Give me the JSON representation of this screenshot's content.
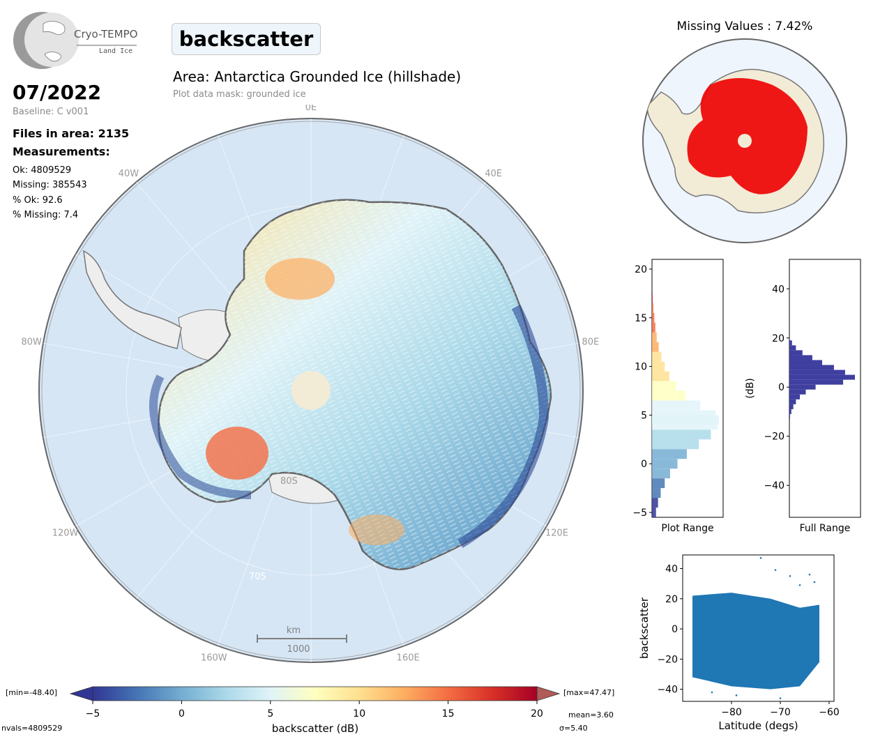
{
  "branding": {
    "product": "Cryo-TEMPO",
    "subproduct": "Land Ice"
  },
  "header": {
    "variable": "backscatter",
    "date": "07/2022",
    "baseline": "Baseline: C v001",
    "area": "Area: Antarctica Grounded Ice (hillshade)",
    "mask": "Plot data mask: grounded ice"
  },
  "stats": {
    "files_label": "Files in area: 2135",
    "measurements_label": "Measurements:",
    "ok": "Ok: 4809529",
    "missing": "Missing: 385543",
    "pct_ok": "% Ok: 92.6",
    "pct_missing": "% Missing: 7.4"
  },
  "main_map": {
    "lon_labels": [
      "0E",
      "40E",
      "80E",
      "120E",
      "160E",
      "160W",
      "120W",
      "80W",
      "40W"
    ],
    "lat_labels": [
      "80S",
      "70S"
    ],
    "scalebar_unit": "km",
    "scalebar_value": "1000"
  },
  "missing_map": {
    "title": "Missing Values : 7.42%"
  },
  "colorbar": {
    "min_label": "[min=-48.40]",
    "max_label": "[max=47.47]",
    "label": "backscatter (dB)",
    "ticks": [
      "-5",
      "0",
      "5",
      "10",
      "15",
      "20"
    ],
    "mean_label": "mean=3.60",
    "sigma_label": "σ=5.40",
    "nvals_label": "nvals=4809529",
    "colors": [
      "#313695",
      "#4575b4",
      "#74add1",
      "#abd9e9",
      "#e0f3f8",
      "#ffffbf",
      "#fee090",
      "#fdae61",
      "#f46d43",
      "#d73027",
      "#a50026"
    ]
  },
  "chart_data": [
    {
      "type": "bar",
      "orientation": "horizontal",
      "xlabel": "Plot Range",
      "ylabel": "",
      "ylim": [
        -5.5,
        21
      ],
      "yticks": [
        "20",
        "15",
        "10",
        "5",
        "0",
        "-5"
      ],
      "bins_center": [
        -5,
        -4,
        -3,
        -2,
        -1,
        0,
        1,
        2,
        3,
        4,
        4.5,
        5,
        6,
        7,
        8,
        9,
        10,
        11,
        12,
        13,
        14,
        15,
        16,
        17
      ],
      "relative_counts": [
        0.06,
        0.09,
        0.13,
        0.19,
        0.27,
        0.38,
        0.52,
        0.7,
        0.88,
        0.98,
        1.0,
        0.95,
        0.72,
        0.5,
        0.36,
        0.26,
        0.19,
        0.14,
        0.1,
        0.07,
        0.05,
        0.035,
        0.02,
        0.01
      ]
    },
    {
      "type": "bar",
      "orientation": "horizontal",
      "xlabel": "Full Range",
      "ylabel": "(dB)",
      "ylim": [
        -53,
        52
      ],
      "yticks": [
        "40",
        "20",
        "0",
        "-20",
        "-40"
      ],
      "color": "#3f3fa0",
      "bins_center": [
        18,
        16,
        14,
        12,
        10,
        8,
        6,
        4,
        2,
        0,
        -2,
        -4,
        -6,
        -8,
        -10,
        -12
      ],
      "relative_counts": [
        0.04,
        0.1,
        0.2,
        0.35,
        0.5,
        0.68,
        0.85,
        1.0,
        0.82,
        0.4,
        0.25,
        0.16,
        0.1,
        0.06,
        0.03,
        0.01
      ]
    },
    {
      "type": "scatter",
      "xlabel": "Latitude (degs)",
      "ylabel": "backscatter",
      "xlim": [
        -90,
        -59
      ],
      "ylim": [
        -48,
        49
      ],
      "xticks": [
        "-80",
        "-70",
        "-60"
      ],
      "yticks": [
        "40",
        "20",
        "0",
        "-20",
        "-40"
      ],
      "color": "#1f77b4",
      "band_upper": [
        [
          -88,
          22
        ],
        [
          -80,
          24
        ],
        [
          -72,
          20
        ],
        [
          -66,
          14
        ],
        [
          -62,
          16
        ]
      ],
      "band_lower": [
        [
          -88,
          -32
        ],
        [
          -80,
          -38
        ],
        [
          -72,
          -40
        ],
        [
          -66,
          -38
        ],
        [
          -62,
          -22
        ]
      ],
      "outliers": [
        [
          -74,
          47
        ],
        [
          -71,
          39
        ],
        [
          -64,
          36
        ],
        [
          -63,
          31
        ],
        [
          -66,
          29
        ],
        [
          -68,
          35
        ],
        [
          -79,
          -44
        ],
        [
          -84,
          -42
        ],
        [
          -70,
          -46
        ]
      ]
    }
  ]
}
